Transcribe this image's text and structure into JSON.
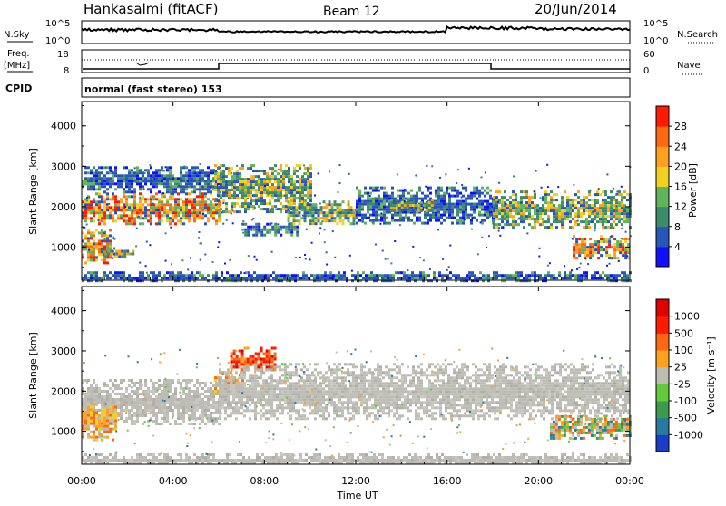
{
  "header": {
    "station": "Hankasalmi (fitACF)",
    "beam": "Beam 12",
    "date": "20/Jun/2014"
  },
  "strip": {
    "nsky_label": "N.Sky",
    "nsearch_label": "N.Search",
    "noise_ticks": [
      "10^5",
      "10^0"
    ],
    "freq_label_1": "Freq.",
    "freq_label_2": "[MHz]",
    "freq_ticks": [
      "18",
      "8"
    ],
    "nave_label": "Nave",
    "nave_ticks": [
      "60",
      "0"
    ],
    "cpid_label": "CPID",
    "cpid_text": "normal (fast stereo) 153"
  },
  "x_axis": {
    "label": "Time UT",
    "ticks": [
      "00:00",
      "04:00",
      "08:00",
      "12:00",
      "16:00",
      "20:00",
      "00:00"
    ]
  },
  "chart_data": [
    {
      "type": "heatmap",
      "panel": "power",
      "ylabel": "Slant Range [km]",
      "ylim": [
        180,
        4600
      ],
      "yticks": [
        1000,
        2000,
        3000,
        4000
      ],
      "xlim": [
        0,
        24
      ],
      "colorbar": {
        "label": "Power [dB]",
        "range": [
          0,
          32
        ],
        "ticks": [
          "4",
          "8",
          "12",
          "16",
          "20",
          "24",
          "28"
        ],
        "colors": [
          "#1010ff",
          "#2a55b8",
          "#3c8c6c",
          "#62b45a",
          "#f0d020",
          "#ffa020",
          "#ff6810",
          "#ff1a00"
        ]
      },
      "bands": [
        {
          "t0": 0.0,
          "t1": 1.2,
          "r0": 600,
          "r1": 1450,
          "level": "high"
        },
        {
          "t0": 0.0,
          "t1": 6.0,
          "r0": 1550,
          "r1": 2350,
          "level": "high"
        },
        {
          "t0": 1.0,
          "t1": 2.3,
          "r0": 750,
          "r1": 1000,
          "level": "mid"
        },
        {
          "t0": 0.0,
          "t1": 6.0,
          "r0": 2350,
          "r1": 3000,
          "level": "low"
        },
        {
          "t0": 5.8,
          "t1": 10.0,
          "r0": 1900,
          "r1": 3050,
          "level": "mid"
        },
        {
          "t0": 7.0,
          "t1": 9.5,
          "r0": 1300,
          "r1": 1600,
          "level": "low"
        },
        {
          "t0": 9.0,
          "t1": 12.0,
          "r0": 1600,
          "r1": 2150,
          "level": "mid"
        },
        {
          "t0": 12.0,
          "t1": 18.0,
          "r0": 1600,
          "r1": 2500,
          "level": "low"
        },
        {
          "t0": 13.5,
          "t1": 15.5,
          "r0": 1900,
          "r1": 2200,
          "level": "mid"
        },
        {
          "t0": 18.0,
          "t1": 24.0,
          "r0": 1500,
          "r1": 2400,
          "level": "mid"
        },
        {
          "t0": 21.5,
          "t1": 24.0,
          "r0": 700,
          "r1": 1300,
          "level": "high"
        },
        {
          "t0": 0.0,
          "t1": 24.0,
          "r0": 180,
          "r1": 400,
          "level": "low"
        }
      ]
    },
    {
      "type": "heatmap",
      "panel": "velocity",
      "ylabel": "Slant Range [km]",
      "ylim": [
        180,
        4600
      ],
      "yticks": [
        1000,
        2000,
        3000,
        4000
      ],
      "xlim": [
        0,
        24
      ],
      "colorbar": {
        "label": "Velocity [m s⁻¹]",
        "ticks": [
          "1000",
          "500",
          "100",
          "25",
          "-25",
          "-100",
          "-500",
          "-1000"
        ],
        "colors": [
          "#1a3cc8",
          "#2878a0",
          "#3c9c4c",
          "#64c83c",
          "#bdbdb5",
          "#ffa020",
          "#ff6810",
          "#ff1a00",
          "#e00000"
        ]
      },
      "bands": [
        {
          "t0": 0.0,
          "t1": 6.0,
          "r0": 1200,
          "r1": 2300,
          "level": "ground"
        },
        {
          "t0": 0.0,
          "t1": 1.5,
          "r0": 800,
          "r1": 1700,
          "level": "away"
        },
        {
          "t0": 5.8,
          "t1": 7.0,
          "r0": 2000,
          "r1": 2500,
          "level": "away"
        },
        {
          "t0": 6.5,
          "t1": 8.5,
          "r0": 2500,
          "r1": 3100,
          "level": "away_strong"
        },
        {
          "t0": 6.0,
          "t1": 24.0,
          "r0": 1300,
          "r1": 2700,
          "level": "ground"
        },
        {
          "t0": 20.5,
          "t1": 24.0,
          "r0": 800,
          "r1": 1400,
          "level": "mixed"
        },
        {
          "t0": 0.0,
          "t1": 24.0,
          "r0": 180,
          "r1": 450,
          "level": "ground"
        }
      ]
    }
  ]
}
